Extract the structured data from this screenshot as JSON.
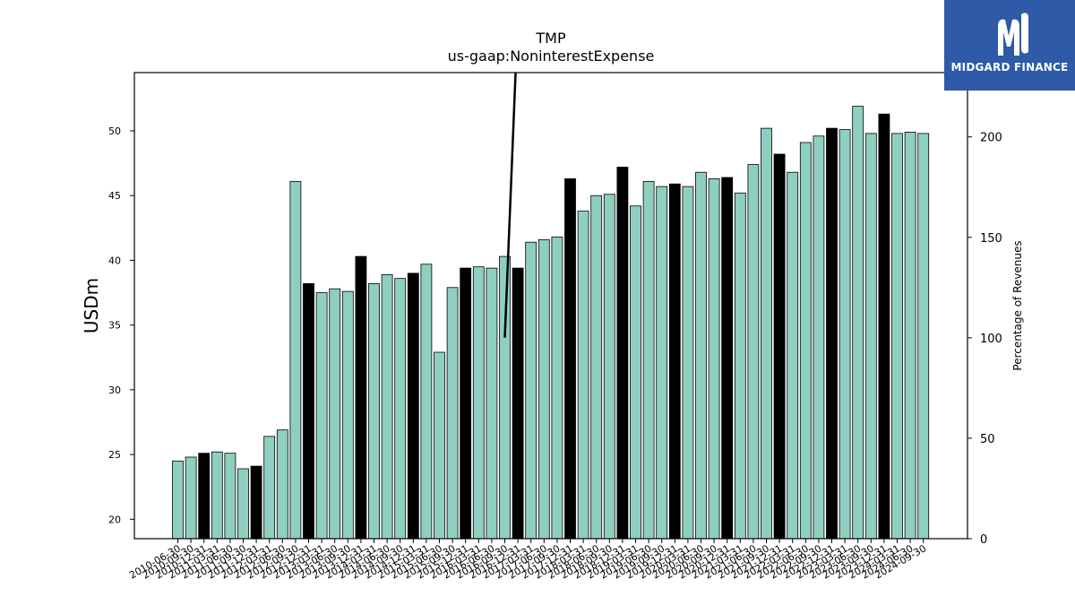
{
  "brand": {
    "name": "MIDGARD FINANCE",
    "logo_icon": "mf-monogram-icon",
    "color": "#2e5aa8"
  },
  "chart_data": {
    "type": "bar",
    "title": "TMP",
    "subtitle": "us-gaap:NoninterestExpense",
    "ylabel": "USDm",
    "y2label": "Percentage of Revenues",
    "ylim": [
      18.5,
      54.5
    ],
    "y2lim": [
      0,
      232
    ],
    "yticks": [
      20,
      25,
      30,
      35,
      40,
      45,
      50
    ],
    "y2ticks": [
      0,
      50,
      100,
      150,
      200
    ],
    "colors": {
      "quarter": "#8ecfc0",
      "annual": "#000000"
    },
    "categories": [
      "2010-06-30",
      "2010-09-30",
      "2010-12-31",
      "2011-03-31",
      "2011-06-30",
      "2011-09-30",
      "2011-12-31",
      "2012-03-31",
      "2012-06-30",
      "2012-09-30",
      "2012-12-31",
      "2013-03-31",
      "2013-06-30",
      "2013-09-30",
      "2013-12-31",
      "2014-03-31",
      "2014-06-30",
      "2014-09-30",
      "2014-12-31",
      "2015-03-31",
      "2015-06-30",
      "2015-09-30",
      "2015-12-31",
      "2016-03-31",
      "2016-06-30",
      "2016-09-30",
      "2016-12-31",
      "2017-03-31",
      "2017-06-30",
      "2017-09-30",
      "2017-12-31",
      "2018-03-31",
      "2018-06-30",
      "2018-09-30",
      "2018-12-31",
      "2019-03-31",
      "2019-06-30",
      "2019-09-30",
      "2019-12-31",
      "2020-03-31",
      "2020-06-30",
      "2020-09-30",
      "2020-12-31",
      "2021-03-31",
      "2021-06-30",
      "2021-09-30",
      "2021-12-31",
      "2022-03-31",
      "2022-06-30",
      "2022-09-30",
      "2022-12-31",
      "2023-03-31",
      "2023-06-30",
      "2023-09-30",
      "2023-12-31",
      "2024-03-31",
      "2024-06-30",
      "2024-09-30"
    ],
    "values": [
      24.5,
      24.8,
      25.1,
      25.2,
      25.1,
      23.9,
      24.1,
      26.4,
      26.9,
      46.1,
      38.2,
      37.5,
      37.8,
      37.6,
      40.3,
      38.2,
      38.9,
      38.6,
      39.0,
      39.7,
      32.9,
      37.9,
      39.4,
      39.5,
      39.4,
      40.3,
      39.4,
      41.4,
      41.6,
      41.8,
      46.3,
      43.8,
      45.0,
      45.1,
      47.2,
      44.2,
      46.1,
      45.7,
      45.9,
      45.7,
      46.8,
      46.3,
      46.4,
      45.2,
      47.4,
      50.2,
      48.2,
      46.8,
      49.1,
      49.6,
      50.2,
      50.1,
      51.9,
      49.8,
      51.3,
      49.8,
      49.9,
      49.8
    ],
    "annual": [
      false,
      false,
      true,
      false,
      false,
      false,
      true,
      false,
      false,
      false,
      true,
      false,
      false,
      false,
      true,
      false,
      false,
      false,
      true,
      false,
      false,
      false,
      true,
      false,
      false,
      false,
      true,
      false,
      false,
      false,
      true,
      false,
      false,
      false,
      true,
      false,
      false,
      false,
      true,
      false,
      false,
      false,
      true,
      false,
      false,
      false,
      true,
      false,
      false,
      false,
      true,
      false,
      false,
      false,
      true,
      false,
      false,
      false
    ],
    "pct_revenue_line": [
      {
        "x": "2016-09-30",
        "y": 100
      },
      {
        "x": "2016-12-31",
        "y": 260
      }
    ]
  }
}
